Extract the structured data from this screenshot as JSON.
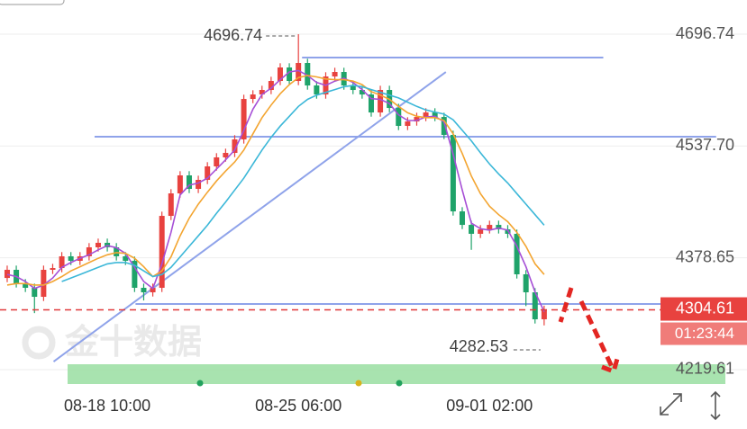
{
  "chart_data": {
    "type": "candlestick",
    "up_color": "#e8423f",
    "down_color": "#1fa36a",
    "open": [
      4350.0,
      4361.6,
      4342.4,
      4336.0,
      4323.2,
      4361.6,
      4364.1,
      4380.8,
      4374.4,
      4380.8,
      4393.6,
      4400.0,
      4393.6,
      4380.8,
      4374.4,
      4336.0,
      4329.6,
      4336.0,
      4438.3,
      4470.3,
      4495.9,
      4476.7,
      4489.5,
      4508.7,
      4521.5,
      4527.9,
      4547.1,
      4604.6,
      4611.0,
      4617.4,
      4630.2,
      4649.4,
      4630.2,
      4655.8,
      4623.8,
      4611.0,
      4636.6,
      4643.0,
      4623.8,
      4617.4,
      4611.0,
      4585.4,
      4617.4,
      4591.8,
      4566.3,
      4572.6,
      4579.0,
      4585.4,
      4579.0,
      4553.5,
      4444.7,
      4425.5,
      4412.8,
      4419.2,
      4425.5,
      4419.2,
      4412.8,
      4355.2,
      4329.6,
      4291.2
    ],
    "high": [
      4367.6,
      4367.6,
      4348.4,
      4342.0,
      4367.6,
      4370.1,
      4386.8,
      4386.8,
      4386.8,
      4399.6,
      4406.0,
      4406.0,
      4399.6,
      4386.8,
      4380.4,
      4342.0,
      4342.0,
      4444.3,
      4476.3,
      4501.9,
      4501.9,
      4495.5,
      4514.7,
      4527.5,
      4533.9,
      4553.1,
      4610.6,
      4617.0,
      4623.4,
      4636.2,
      4655.4,
      4655.4,
      4696.74,
      4661.8,
      4629.8,
      4642.6,
      4649.0,
      4649.0,
      4629.8,
      4623.4,
      4617.0,
      4623.4,
      4623.4,
      4597.8,
      4578.6,
      4585.0,
      4591.4,
      4591.4,
      4585.0,
      4559.5,
      4450.7,
      4431.5,
      4425.2,
      4431.5,
      4431.5,
      4425.2,
      4418.8,
      4361.2,
      4335.6,
      4310.6
    ],
    "low": [
      4344.0,
      4336.4,
      4330.0,
      4300.0,
      4317.2,
      4355.6,
      4358.1,
      4368.4,
      4368.4,
      4374.8,
      4387.6,
      4387.6,
      4374.8,
      4368.4,
      4330.0,
      4318.0,
      4323.6,
      4330.0,
      4432.3,
      4464.3,
      4470.7,
      4470.7,
      4483.5,
      4502.7,
      4515.5,
      4521.9,
      4541.1,
      4598.6,
      4605.0,
      4611.4,
      4624.2,
      4624.2,
      4624.2,
      4617.8,
      4605.0,
      4605.0,
      4630.6,
      4617.8,
      4611.4,
      4605.0,
      4579.4,
      4579.4,
      4585.8,
      4560.3,
      4560.3,
      4566.6,
      4573.0,
      4573.0,
      4547.5,
      4438.7,
      4419.5,
      4390.0,
      4406.8,
      4413.2,
      4413.2,
      4406.8,
      4349.2,
      4310.0,
      4285.2,
      4282.53
    ],
    "close": [
      4361.6,
      4342.4,
      4336.0,
      4323.2,
      4361.6,
      4364.1,
      4380.8,
      4374.4,
      4380.8,
      4393.6,
      4400.0,
      4393.6,
      4380.8,
      4374.4,
      4336.0,
      4329.6,
      4336.0,
      4438.3,
      4470.3,
      4495.9,
      4476.7,
      4489.5,
      4508.7,
      4521.5,
      4527.9,
      4547.1,
      4604.6,
      4611.0,
      4617.4,
      4630.2,
      4649.4,
      4630.2,
      4655.8,
      4623.8,
      4611.0,
      4636.6,
      4643.0,
      4623.8,
      4617.4,
      4611.0,
      4585.4,
      4617.4,
      4591.8,
      4566.3,
      4572.6,
      4579.0,
      4585.4,
      4579.0,
      4553.5,
      4444.7,
      4425.5,
      4412.8,
      4419.2,
      4425.5,
      4419.2,
      4412.8,
      4355.2,
      4329.6,
      4291.2,
      4304.61
    ],
    "averages": [
      {
        "color": "#a64fd6",
        "values": [
          4355,
          4352,
          4345,
          4335,
          4340,
          4350,
          4365,
          4372,
          4378,
          4383,
          4390,
          4396,
          4393,
          4385,
          4365,
          4345,
          4335,
          4370,
          4415,
          4468,
          4482,
          4485,
          4492,
          4505,
          4518,
          4532,
          4560,
          4590,
          4611,
          4620,
          4632,
          4643,
          4645,
          4638,
          4628,
          4624,
          4630,
          4634,
          4628,
          4618,
          4605,
          4604,
          4598,
          4582,
          4574,
          4574,
          4579,
          4580,
          4572,
          4526,
          4475,
          4428,
          4420,
          4418,
          4421,
          4418,
          4395,
          4366,
          4330,
          4302
        ]
      },
      {
        "color": "#f3a531",
        "values": [
          4340,
          4342,
          4342,
          4340,
          4340,
          4345,
          4352,
          4360,
          4366,
          4372,
          4378,
          4383,
          4386,
          4385,
          4378,
          4366,
          4352,
          4360,
          4380,
          4410,
          4435,
          4455,
          4472,
          4488,
          4502,
          4515,
          4532,
          4555,
          4578,
          4596,
          4612,
          4625,
          4635,
          4638,
          4636,
          4633,
          4632,
          4632,
          4630,
          4625,
          4615,
          4610,
          4604,
          4594,
          4585,
          4580,
          4578,
          4578,
          4574,
          4555,
          4527,
          4495,
          4470,
          4452,
          4440,
          4430,
          4415,
          4395,
          4370,
          4355
        ]
      },
      {
        "color": "#3bb7d8",
        "values": [
          null,
          null,
          null,
          null,
          null,
          null,
          4345,
          4350,
          4355,
          4360,
          4365,
          4370,
          4372,
          4372,
          4368,
          4360,
          4352,
          4355,
          4365,
          4380,
          4395,
          4410,
          4425,
          4442,
          4458,
          4475,
          4492,
          4512,
          4532,
          4550,
          4566,
          4580,
          4594,
          4604,
          4610,
          4614,
          4618,
          4622,
          4624,
          4622,
          4618,
          4614,
          4610,
          4606,
          4600,
          4594,
          4589,
          4586,
          4583,
          4575,
          4560,
          4545,
          4528,
          4512,
          4498,
          4485,
          4470,
          4455,
          4440,
          4425
        ]
      }
    ],
    "drawn_lines": [
      {
        "color": "#8fa3ea",
        "x": [
          32.4,
          65.5
        ],
        "y": [
          4663.5,
          4663.5
        ]
      },
      {
        "color": "#8fa3ea",
        "x": [
          9.6,
          77.9
        ],
        "y": [
          4550.9,
          4550.9
        ]
      },
      {
        "color": "#8fa3ea",
        "x": [
          14.1,
          75.0
        ],
        "y": [
          4313.0,
          4313.0
        ]
      },
      {
        "color": "#8fa3ea",
        "x": [
          5.1,
          48.2
        ],
        "y": [
          4231.1,
          4643.0
        ]
      }
    ],
    "xlim": [
      -0.79,
      81.29
    ],
    "xticks": [
      {
        "value": 11,
        "label": "08-18 10:00"
      },
      {
        "value": 32,
        "label": "08-25 06:00"
      },
      {
        "value": 53,
        "label": "09-01 02:00"
      }
    ],
    "ylim": [
      4195.3,
      4745.35
    ],
    "yticks": [
      4219.61,
      4378.65,
      {
        "value": 4537.7,
        "label": "4537.70"
      },
      4696.74
    ],
    "grid": true,
    "countdown": "01:23:44",
    "watermark": "金十数据"
  }
}
